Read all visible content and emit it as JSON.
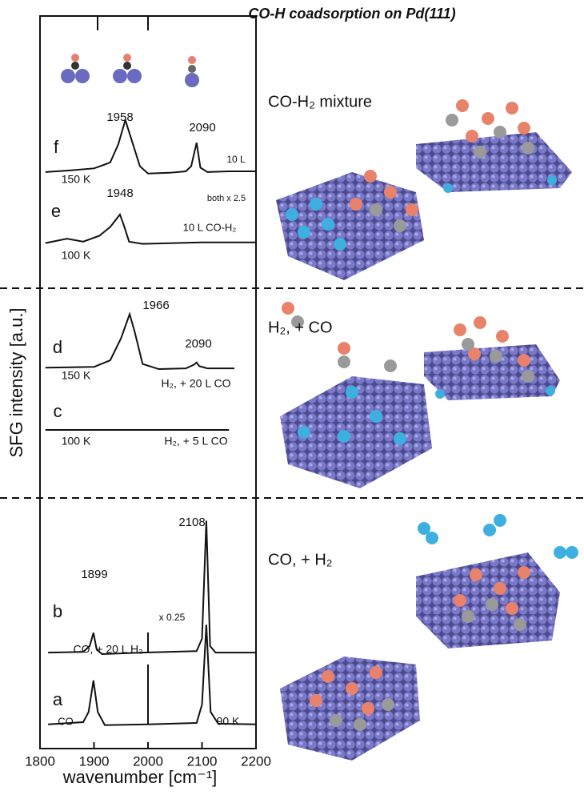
{
  "chart_data": {
    "type": "line",
    "title": "CO-H coadsorption on Pd(111)",
    "xlabel": "wavenumber [cm⁻¹]",
    "ylabel": "SFG intensity [a.u.]",
    "xlim": [
      1800,
      2200
    ],
    "xticks": [
      1800,
      1900,
      2000,
      2100,
      2200
    ],
    "ylim": [
      0,
      100
    ],
    "color": "#111111",
    "series": [
      {
        "name": "f",
        "x": [
          1810,
          1850,
          1900,
          1930,
          1945,
          1958,
          1970,
          1985,
          2000,
          2040,
          2070,
          2080,
          2090,
          2097,
          2110,
          2150,
          2200
        ],
        "values": [
          78.7,
          78.9,
          79.2,
          80,
          82.5,
          85.8,
          83,
          79.5,
          78.5,
          78.6,
          78.8,
          79.5,
          82.7,
          79.3,
          78.7,
          78.8,
          78.8
        ]
      },
      {
        "name": "e",
        "x": [
          1810,
          1850,
          1880,
          1910,
          1930,
          1948,
          1955,
          1965,
          1990,
          2100,
          2200
        ],
        "values": [
          69,
          69.6,
          69.2,
          70,
          71.2,
          72.9,
          71.5,
          69.2,
          68.9,
          69.1,
          69.1
        ]
      },
      {
        "name": "d",
        "x": [
          1810,
          1900,
          1930,
          1950,
          1966,
          1975,
          1990,
          2020,
          2070,
          2085,
          2090,
          2095,
          2110,
          2160
        ],
        "values": [
          52,
          52.1,
          53,
          56,
          59.3,
          57,
          52.5,
          51.8,
          51.9,
          52.4,
          52.7,
          52.2,
          51.9,
          51.9
        ]
      },
      {
        "name": "c",
        "x": [
          1810,
          2150
        ],
        "values": [
          43.5,
          43.5
        ]
      },
      {
        "name": "b",
        "x": [
          1815,
          1880,
          1892,
          1899,
          1905,
          1915,
          1990,
          2090,
          2100,
          2108,
          2115,
          2125,
          2200
        ],
        "values": [
          13.1,
          13.2,
          14,
          15.8,
          13.5,
          12.9,
          13.1,
          13.3,
          15,
          31.1,
          14,
          13.1,
          13.1
        ]
      },
      {
        "name": "a",
        "x": [
          1815,
          1880,
          1890,
          1899,
          1907,
          1920,
          2000,
          2090,
          2100,
          2108,
          2116,
          2130,
          2200
        ],
        "values": [
          3.3,
          3.6,
          5,
          9.3,
          5,
          3.2,
          3.3,
          3.5,
          6,
          16.9,
          5,
          3.4,
          3.3
        ]
      }
    ],
    "annotations": [
      "1958",
      "2090",
      "10 L",
      "150 K",
      "both x 2.5",
      "1948",
      "10 L CO-H₂",
      "100 K",
      "1966",
      "2090",
      "150 K",
      "H₂, + 20 L CO",
      "100 K",
      "H₂, + 5  L CO",
      "2108",
      "1899",
      "x 0.25",
      "CO, + 20 L H₂",
      "CO",
      "90 K"
    ],
    "section_labels": [
      "CO-H₂ mixture",
      "H₂, + CO",
      "CO, + H₂"
    ]
  }
}
